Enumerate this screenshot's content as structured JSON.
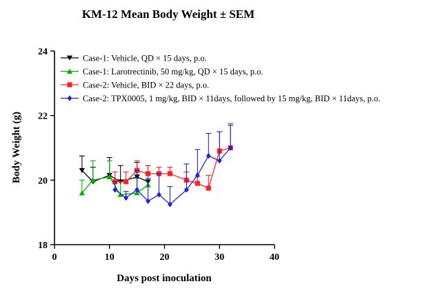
{
  "chart_data": {
    "type": "line",
    "title": "KM-12 Mean Body Weight ± SEM",
    "xlabel": "Days post inoculation",
    "ylabel": "Body Weight (g)",
    "xlim": [
      0,
      40
    ],
    "ylim": [
      18,
      24
    ],
    "xticks": [
      "0",
      "10",
      "20",
      "30",
      "40"
    ],
    "yticks": [
      "18",
      "20",
      "22",
      "24"
    ],
    "grid": false,
    "legend_position": "top-left",
    "series": [
      {
        "name": "Case-1: Vehicle, QD × 15 days, p.o.",
        "color": "#000000",
        "marker": "triangle-down",
        "x": [
          5,
          7,
          10,
          12,
          15,
          17
        ],
        "y": [
          20.3,
          19.95,
          20.15,
          19.95,
          20.1,
          19.95
        ],
        "err": [
          0.45,
          0.45,
          0.55,
          0.5,
          0.45,
          0.25
        ]
      },
      {
        "name": "Case-1: Larotrectinib, 50 mg/kg, QD × 15 days, p.o.",
        "color": "#00b000",
        "marker": "triangle-up",
        "x": [
          5,
          7,
          10,
          12,
          15,
          17
        ],
        "y": [
          19.6,
          20.0,
          20.1,
          19.55,
          19.6,
          19.85
        ],
        "err": [
          0.4,
          0.6,
          0.5,
          0.4,
          0.45,
          0.6
        ]
      },
      {
        "name": "Case-2: Vehicle, BID × 22 days, p.o.",
        "color": "#ff2020",
        "marker": "square",
        "x": [
          11,
          13,
          15,
          17,
          19,
          21,
          24,
          26,
          28,
          30,
          32
        ],
        "y": [
          19.95,
          19.95,
          20.3,
          20.2,
          20.2,
          20.2,
          20.0,
          19.9,
          19.75,
          20.9,
          21.0
        ],
        "err": [
          0.3,
          0.3,
          0.3,
          0.25,
          0.2,
          0.2,
          0.25,
          0.2,
          0.4,
          0.6,
          0.75
        ]
      },
      {
        "name": "Case-2: TPX0005, 1 mg/kg, BID × 11days, followed by 15 mg/kg, BID × 11days, p.o.",
        "color": "#2020e0",
        "marker": "diamond",
        "x": [
          11,
          13,
          15,
          17,
          19,
          21,
          24,
          26,
          28,
          30,
          32
        ],
        "y": [
          19.7,
          19.45,
          19.7,
          19.35,
          19.55,
          19.25,
          19.7,
          20.15,
          20.75,
          20.6,
          21.0
        ],
        "err": [
          0.25,
          0.2,
          0.6,
          0.7,
          0.65,
          0.55,
          0.8,
          0.8,
          0.7,
          0.9,
          0.7
        ]
      }
    ]
  }
}
